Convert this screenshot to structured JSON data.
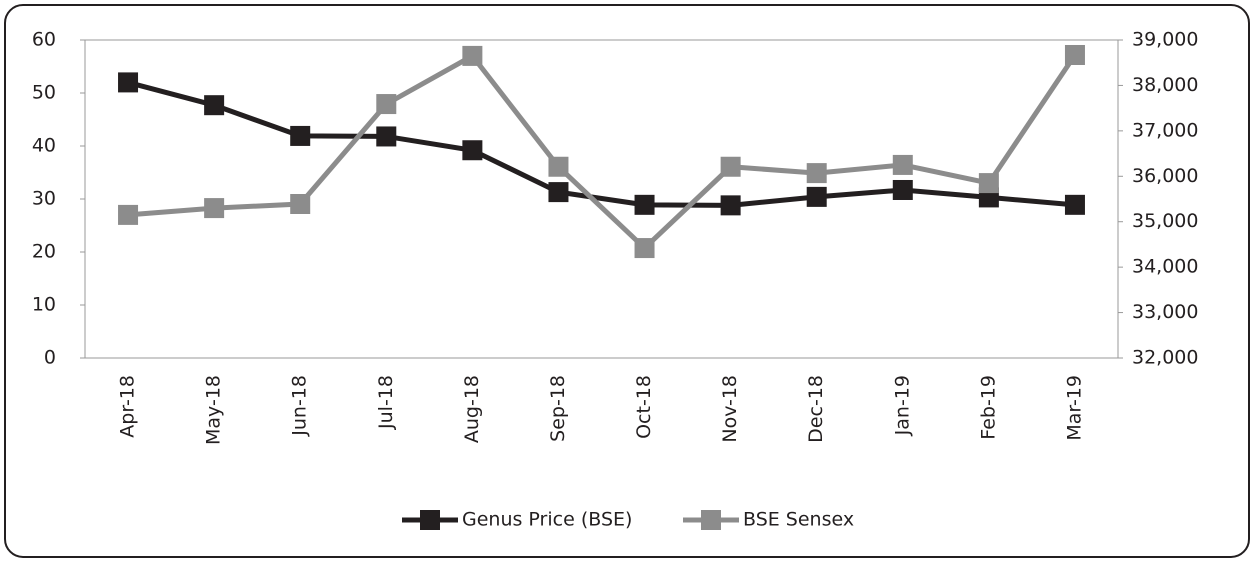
{
  "chart_data": {
    "type": "line",
    "categories": [
      "Apr-18",
      "May-18",
      "Jun-18",
      "Jul-18",
      "Aug-18",
      "Sep-18",
      "Oct-18",
      "Nov-18",
      "Dec-18",
      "Jan-19",
      "Feb-19",
      "Mar-19"
    ],
    "series": [
      {
        "name": "Genus Price (BSE)",
        "color": "#231f20",
        "values": [
          52,
          47.7,
          41.9,
          41.8,
          39.2,
          31.3,
          28.9,
          28.8,
          30.4,
          31.7,
          30.3,
          28.9
        ]
      },
      {
        "name": "BSE Sensex",
        "color": "#8c8c8c",
        "axis": "y2",
        "values": [
          35150,
          35300,
          35390,
          37590,
          38650,
          36210,
          34420,
          36210,
          36070,
          36250,
          35850,
          38670
        ]
      }
    ],
    "ylim": [
      0,
      60
    ],
    "yticks": [
      0,
      10,
      20,
      30,
      40,
      50,
      60
    ],
    "y2lim": [
      32000,
      39000
    ],
    "y2ticks": [
      {
        "value": 32000,
        "label": "32,000"
      },
      {
        "value": 33000,
        "label": "33,000"
      },
      {
        "value": 34000,
        "label": "34,000"
      },
      {
        "value": 35000,
        "label": "35,000"
      },
      {
        "value": 36000,
        "label": "36,000"
      },
      {
        "value": 37000,
        "label": "37,000"
      },
      {
        "value": 38000,
        "label": "38,000"
      },
      {
        "value": 39000,
        "label": "39,000"
      }
    ],
    "legend": "bottom"
  }
}
